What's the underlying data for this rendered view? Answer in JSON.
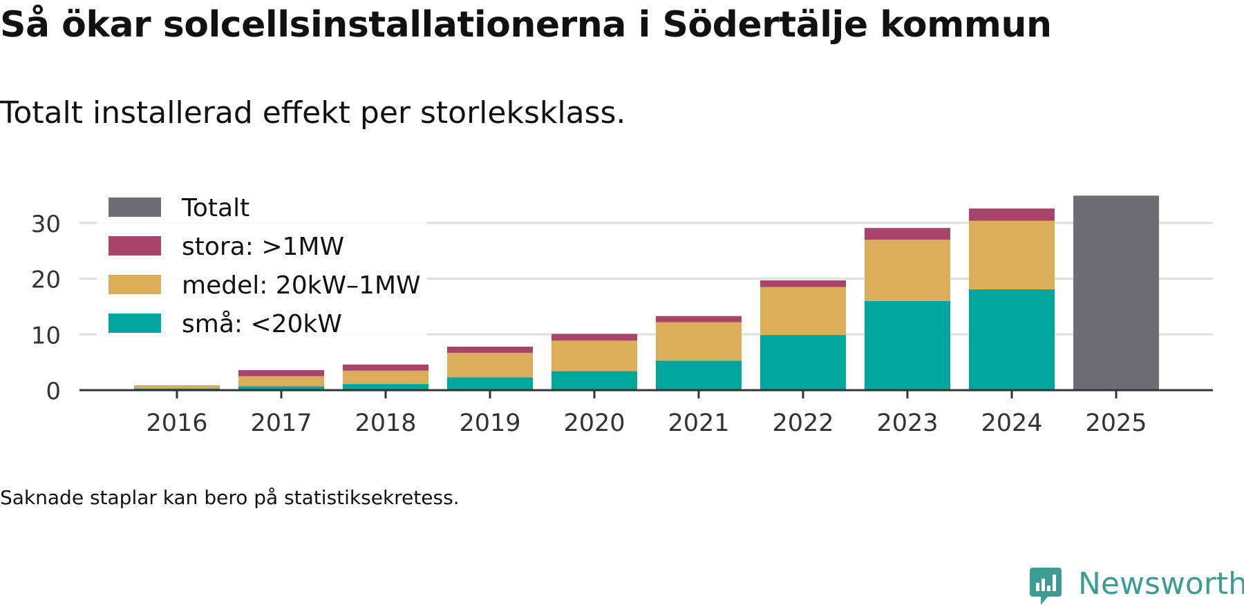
{
  "title": "Så ökar solcellsinstallationerna i Södertälje kommun",
  "subtitle": "Totalt installerad effekt per storleksklass.",
  "footnote": "Saknade staplar kan bero på statistiksekretess.",
  "brand": {
    "name": "Newsworthy",
    "icon": "newsworthy-logo-icon"
  },
  "colors": {
    "sma": "#00a59b",
    "medel": "#dcae5a",
    "stora": "#a8446a",
    "totalt": "#6e6d75",
    "grid": "#dedede",
    "axis": "#333333",
    "brand": "#3d9c94"
  },
  "chart_data": {
    "type": "bar",
    "stacked": true,
    "categories": [
      "2016",
      "2017",
      "2018",
      "2019",
      "2020",
      "2021",
      "2022",
      "2023",
      "2024",
      "2025"
    ],
    "series": [
      {
        "key": "sma",
        "name": "små: <20kW",
        "values": [
          0.3,
          0.7,
          1.1,
          2.3,
          3.4,
          5.3,
          9.9,
          16.0,
          18.1,
          null
        ]
      },
      {
        "key": "medel",
        "name": "medel: 20kW–1MW",
        "values": [
          0.5,
          1.8,
          2.4,
          4.4,
          5.5,
          6.9,
          8.6,
          11.0,
          12.3,
          null
        ]
      },
      {
        "key": "stora",
        "name": "stora: >1MW",
        "values": [
          0.05,
          1.1,
          1.1,
          1.1,
          1.2,
          1.1,
          1.2,
          2.1,
          2.2,
          null
        ]
      },
      {
        "key": "totalt",
        "name": "Totalt",
        "values": [
          null,
          null,
          null,
          null,
          null,
          null,
          null,
          null,
          null,
          34.9
        ]
      }
    ],
    "legend": [
      "Totalt",
      "stora: >1MW",
      "medel: 20kW–1MW",
      "små: <20kW"
    ],
    "legend_keys": [
      "totalt",
      "stora",
      "medel",
      "sma"
    ],
    "legend_position": "top-left",
    "yticks": [
      0,
      10,
      20,
      30
    ],
    "ylim": [
      0,
      35
    ],
    "grid": true,
    "xlabel": "",
    "ylabel": ""
  }
}
